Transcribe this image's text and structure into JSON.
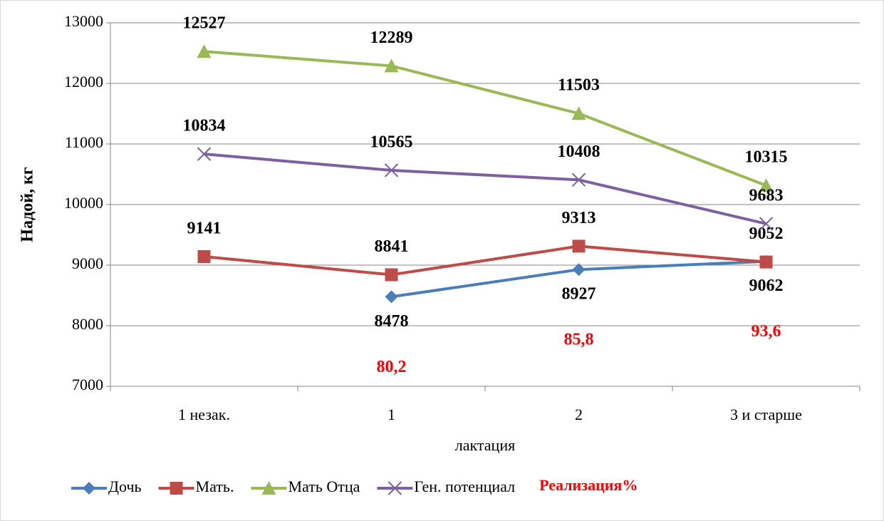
{
  "chart_data": {
    "type": "line",
    "x_label": "лактация",
    "y_label": "Надой, кг",
    "categories": [
      "1 незак.",
      "1",
      "2",
      "3 и старше"
    ],
    "ylim": [
      7000,
      13000
    ],
    "yticks": [
      7000,
      8000,
      9000,
      10000,
      11000,
      12000,
      13000
    ],
    "grid": true,
    "legend": "bottom",
    "series": [
      {
        "name": "Дочь",
        "color": "#4a7ebb",
        "marker": "diamond",
        "values": [
          null,
          8478,
          8927,
          9062
        ]
      },
      {
        "name": "Мать.",
        "color": "#be4b48",
        "marker": "square",
        "values": [
          9141,
          8841,
          9313,
          9052
        ]
      },
      {
        "name": "Мать Отца",
        "color": "#98b954",
        "marker": "triangle",
        "values": [
          12527,
          12289,
          11503,
          10315
        ]
      },
      {
        "name": "Ген. потенциал",
        "color": "#7d60a0",
        "marker": "x",
        "values": [
          10834,
          10565,
          10408,
          9683
        ]
      }
    ],
    "realization": {
      "name": "Реализация%",
      "color": "#ff0000",
      "values": [
        null,
        80.2,
        85.8,
        93.6
      ],
      "value_labels": [
        null,
        "80,2",
        "85,8",
        "93,6"
      ]
    }
  }
}
